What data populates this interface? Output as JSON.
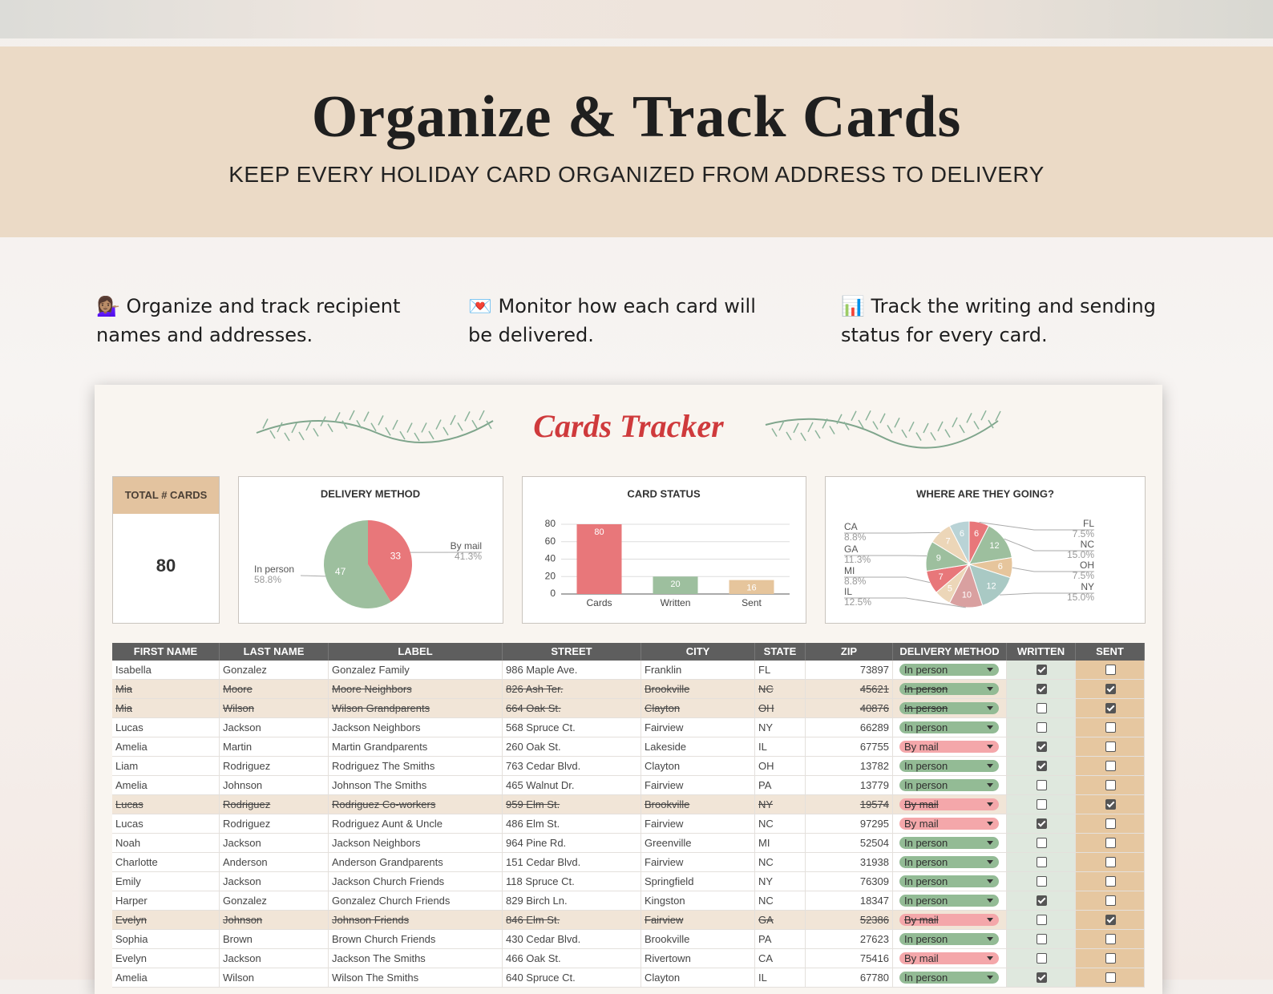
{
  "header": {
    "title": "Organize & Track Cards",
    "subtitle": "KEEP EVERY HOLIDAY CARD ORGANIZED FROM ADDRESS TO DELIVERY"
  },
  "features": [
    "💁🏽‍♀️ Organize and track recipient names and addresses.",
    "💌 Monitor how each card will be delivered.",
    "📊 Track the writing and sending status for every card."
  ],
  "tracker": {
    "title": "Cards Tracker",
    "total": {
      "label": "TOTAL # CARDS",
      "value": 80
    },
    "delivery_chart": {
      "type": "pie",
      "title": "DELIVERY METHOD",
      "categories": [
        "In person",
        "By mail"
      ],
      "values": [
        47,
        33
      ],
      "percent_labels": [
        "58.8%",
        "41.3%"
      ],
      "colors": [
        "#9dbf9e",
        "#e8777a"
      ],
      "pill_colors": [
        "#93bb95",
        "#f4a7aa"
      ]
    },
    "status_chart": {
      "type": "bar",
      "title": "CARD STATUS",
      "categories": [
        "Cards",
        "Written",
        "Sent"
      ],
      "values": [
        80,
        20,
        16
      ],
      "colors": [
        "#e8777a",
        "#9dbf9e",
        "#e6c59c"
      ],
      "ylim": [
        0,
        80
      ],
      "yticks": [
        0,
        20,
        40,
        60,
        80
      ],
      "grid": true
    },
    "destination_chart": {
      "type": "pie",
      "title": "WHERE ARE THEY GOING?",
      "categories": [
        "FL",
        "NC",
        "OH",
        "NY",
        "IL",
        null,
        "MI",
        "GA",
        "CA",
        null
      ],
      "values": [
        6,
        12,
        6,
        12,
        10,
        5,
        7,
        9,
        7,
        6
      ],
      "percent_labels": [
        "7.5%",
        "15.0%",
        "7.5%",
        "15.0%",
        "12.5%",
        null,
        "8.8%",
        "11.3%",
        "8.8%",
        null
      ],
      "colors": [
        "#e8777a",
        "#9dbf9e",
        "#e6c59c",
        "#a9c9c4",
        "#d9a0a0",
        "#ecd6b8",
        "#e8777a",
        "#9dbf9e",
        "#ecd6b8",
        "#b9d3d6"
      ]
    }
  },
  "table": {
    "columns": [
      "FIRST NAME",
      "LAST NAME",
      "LABEL",
      "STREET",
      "CITY",
      "STATE",
      "ZIP",
      "DELIVERY METHOD",
      "WRITTEN",
      "SENT"
    ],
    "rows": [
      [
        "Isabella",
        "Gonzalez",
        "Gonzalez Family",
        "986 Maple Ave.",
        "Franklin",
        "FL",
        73897,
        "In person",
        true,
        false
      ],
      [
        "Mia",
        "Moore",
        "Moore Neighbors",
        "826 Ash Ter.",
        "Brookville",
        "NC",
        45621,
        "In person",
        true,
        true
      ],
      [
        "Mia",
        "Wilson",
        "Wilson Grandparents",
        "664 Oak St.",
        "Clayton",
        "OH",
        40876,
        "In person",
        false,
        true
      ],
      [
        "Lucas",
        "Jackson",
        "Jackson Neighbors",
        "568 Spruce Ct.",
        "Fairview",
        "NY",
        66289,
        "In person",
        false,
        false
      ],
      [
        "Amelia",
        "Martin",
        "Martin Grandparents",
        "260 Oak St.",
        "Lakeside",
        "IL",
        67755,
        "By mail",
        true,
        false
      ],
      [
        "Liam",
        "Rodriguez",
        "Rodriguez The Smiths",
        "763 Cedar Blvd.",
        "Clayton",
        "OH",
        13782,
        "In person",
        true,
        false
      ],
      [
        "Amelia",
        "Johnson",
        "Johnson The Smiths",
        "465 Walnut Dr.",
        "Fairview",
        "PA",
        13779,
        "In person",
        false,
        false
      ],
      [
        "Lucas",
        "Rodriguez",
        "Rodriguez Co-workers",
        "959 Elm St.",
        "Brookville",
        "NY",
        19574,
        "By mail",
        false,
        true
      ],
      [
        "Lucas",
        "Rodriguez",
        "Rodriguez Aunt & Uncle",
        "486 Elm St.",
        "Fairview",
        "NC",
        97295,
        "By mail",
        true,
        false
      ],
      [
        "Noah",
        "Jackson",
        "Jackson Neighbors",
        "964 Pine Rd.",
        "Greenville",
        "MI",
        52504,
        "In person",
        false,
        false
      ],
      [
        "Charlotte",
        "Anderson",
        "Anderson Grandparents",
        "151 Cedar Blvd.",
        "Fairview",
        "NC",
        31938,
        "In person",
        false,
        false
      ],
      [
        "Emily",
        "Jackson",
        "Jackson Church Friends",
        "118 Spruce Ct.",
        "Springfield",
        "NY",
        76309,
        "In person",
        false,
        false
      ],
      [
        "Harper",
        "Gonzalez",
        "Gonzalez Church Friends",
        "829 Birch Ln.",
        "Kingston",
        "NC",
        18347,
        "In person",
        true,
        false
      ],
      [
        "Evelyn",
        "Johnson",
        "Johnson Friends",
        "846 Elm St.",
        "Fairview",
        "GA",
        52386,
        "By mail",
        false,
        true
      ],
      [
        "Sophia",
        "Brown",
        "Brown Church Friends",
        "430 Cedar Blvd.",
        "Brookville",
        "PA",
        27623,
        "In person",
        false,
        false
      ],
      [
        "Evelyn",
        "Jackson",
        "Jackson The Smiths",
        "466 Oak St.",
        "Rivertown",
        "CA",
        75416,
        "By mail",
        false,
        false
      ],
      [
        "Amelia",
        "Wilson",
        "Wilson The Smiths",
        "640 Spruce Ct.",
        "Clayton",
        "IL",
        67780,
        "In person",
        true,
        false
      ]
    ]
  }
}
